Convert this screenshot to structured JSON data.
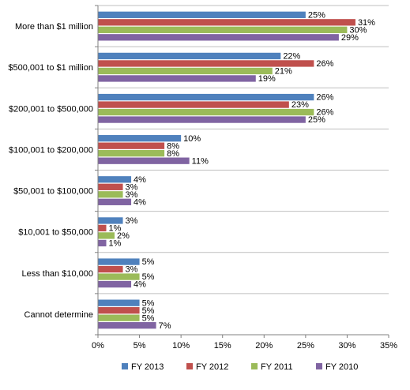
{
  "chart_data": {
    "type": "bar",
    "orientation": "horizontal",
    "title": "",
    "xlabel": "",
    "ylabel": "",
    "categories": [
      "More than $1 million",
      "$500,001 to $1 million",
      "$200,001 to $500,000",
      "$100,001 to $200,000",
      "$50,001 to $100,000",
      "$10,001 to $50,000",
      "Less than $10,000",
      "Cannot determine"
    ],
    "series": [
      {
        "name": "FY 2013",
        "color": "#4f81bd",
        "values": [
          25,
          22,
          26,
          10,
          4,
          3,
          5,
          5
        ]
      },
      {
        "name": "FY 2012",
        "color": "#c0504d",
        "values": [
          31,
          26,
          23,
          8,
          3,
          1,
          3,
          5
        ]
      },
      {
        "name": "FY 2011",
        "color": "#9bbb59",
        "values": [
          30,
          21,
          26,
          8,
          3,
          2,
          5,
          5
        ]
      },
      {
        "name": "FY 2010",
        "color": "#8064a2",
        "values": [
          29,
          19,
          25,
          11,
          4,
          1,
          4,
          7
        ]
      }
    ],
    "xlim": [
      0,
      35
    ],
    "xticks": [
      0,
      5,
      10,
      15,
      20,
      25,
      30,
      35
    ],
    "tick_suffix": "%",
    "value_suffix": "%",
    "grid": "horizontal separators",
    "legend": "bottom"
  }
}
